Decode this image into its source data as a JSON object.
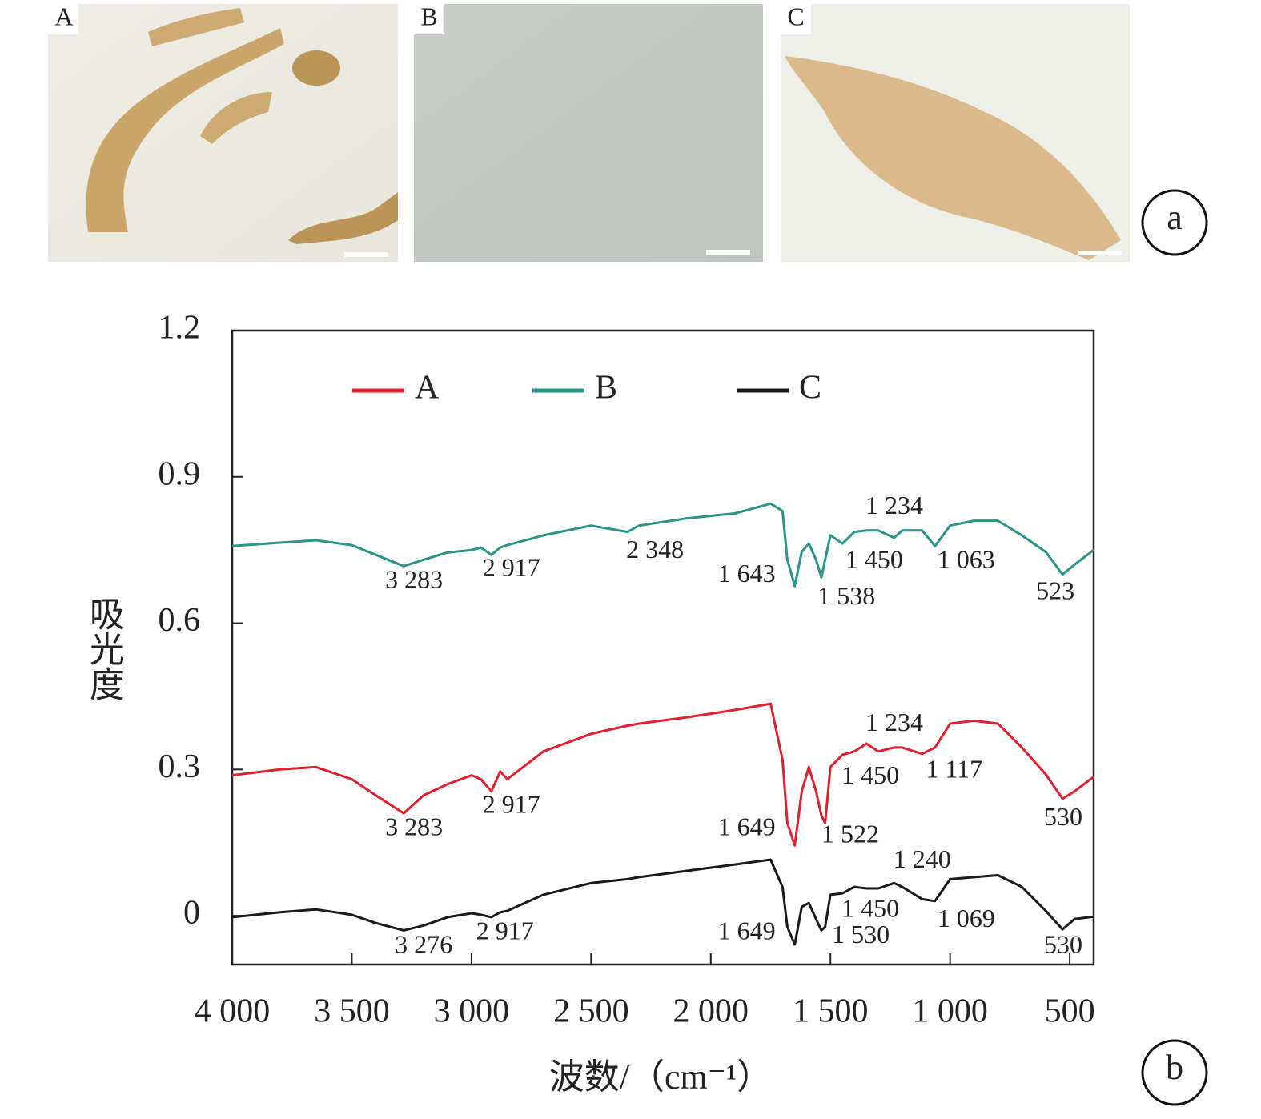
{
  "figure": {
    "micrograph_labels": [
      "A",
      "B",
      "C"
    ],
    "panel_a": "a",
    "panel_b": "b"
  },
  "chart_data": {
    "type": "line",
    "xlabel": "波数/（cm⁻¹）",
    "ylabel": "吸光度",
    "x": [
      4000,
      3800,
      3650,
      3500,
      3400,
      3283,
      3200,
      3100,
      3000,
      2960,
      2917,
      2880,
      2850,
      2700,
      2500,
      2348,
      2300,
      2100,
      1900,
      1750,
      1700,
      1680,
      1649,
      1620,
      1590,
      1560,
      1538,
      1522,
      1500,
      1450,
      1400,
      1350,
      1300,
      1234,
      1200,
      1117,
      1063,
      1000,
      900,
      800,
      700,
      600,
      530,
      480,
      400
    ],
    "series": [
      {
        "name": "A",
        "color": "#e0202f",
        "values": [
          0.288,
          0.3,
          0.305,
          0.28,
          0.247,
          0.21,
          0.247,
          0.27,
          0.288,
          0.28,
          0.255,
          0.296,
          0.28,
          0.337,
          0.373,
          0.39,
          0.394,
          0.407,
          0.422,
          0.435,
          0.32,
          0.19,
          0.144,
          0.255,
          0.305,
          0.255,
          0.206,
          0.19,
          0.305,
          0.33,
          0.337,
          0.353,
          0.337,
          0.345,
          0.345,
          0.332,
          0.345,
          0.394,
          0.4,
          0.394,
          0.345,
          0.29,
          0.24,
          0.255,
          0.285
        ]
      },
      {
        "name": "B",
        "color": "#2a9486",
        "values": [
          0.758,
          0.765,
          0.77,
          0.76,
          0.74,
          0.717,
          0.73,
          0.745,
          0.75,
          0.755,
          0.74,
          0.755,
          0.76,
          0.78,
          0.8,
          0.787,
          0.8,
          0.815,
          0.825,
          0.845,
          0.83,
          0.73,
          0.676,
          0.746,
          0.763,
          0.73,
          0.694,
          0.73,
          0.78,
          0.763,
          0.787,
          0.79,
          0.79,
          0.775,
          0.79,
          0.79,
          0.758,
          0.8,
          0.81,
          0.81,
          0.78,
          0.746,
          0.7,
          0.72,
          0.75
        ]
      },
      {
        "name": "C",
        "color": "#1a1a1a",
        "values": [
          -0.003,
          0.007,
          0.013,
          0.002,
          -0.015,
          -0.03,
          -0.02,
          -0.003,
          0.005,
          0.002,
          -0.003,
          0.007,
          0.01,
          0.043,
          0.067,
          0.075,
          0.079,
          0.092,
          0.105,
          0.115,
          0.059,
          -0.023,
          -0.059,
          0.018,
          0.026,
          -0.007,
          -0.03,
          -0.023,
          0.043,
          0.046,
          0.059,
          0.056,
          0.056,
          0.067,
          0.059,
          0.034,
          0.03,
          0.075,
          0.079,
          0.083,
          0.059,
          0.01,
          -0.028,
          -0.007,
          -0.002
        ]
      }
    ],
    "xlim": [
      4000,
      400
    ],
    "ylim": [
      -0.1,
      1.2
    ],
    "xticks": [
      {
        "value": 4000,
        "label": "4 000"
      },
      {
        "value": 3500,
        "label": "3 500"
      },
      {
        "value": 3000,
        "label": "3 000"
      },
      {
        "value": 2500,
        "label": "2 500"
      },
      {
        "value": 2000,
        "label": "2 000"
      },
      {
        "value": 1500,
        "label": "1 500"
      },
      {
        "value": 1000,
        "label": "1 000"
      },
      500
    ],
    "yticks": [
      0,
      0.3,
      0.6,
      0.9,
      1.2
    ],
    "legend": "top-left",
    "annotations": [
      {
        "text": "3 283",
        "x": 3240,
        "y": 0.684
      },
      {
        "text": "2 917",
        "x": 2833,
        "y": 0.709
      },
      {
        "text": "2 348",
        "x": 2233,
        "y": 0.746
      },
      {
        "text": "1 643",
        "x": 1850,
        "y": 0.697
      },
      {
        "text": "1 538",
        "x": 1433,
        "y": 0.651
      },
      {
        "text": "1 450",
        "x": 1317,
        "y": 0.725
      },
      {
        "text": "1 234",
        "x": 1233,
        "y": 0.836
      },
      {
        "text": "1 063",
        "x": 933,
        "y": 0.725
      },
      {
        "text": "523",
        "x": 560,
        "y": 0.661
      },
      {
        "text": "3 283",
        "x": 3240,
        "y": 0.177
      },
      {
        "text": "2 917",
        "x": 2833,
        "y": 0.223
      },
      {
        "text": "1 649",
        "x": 1850,
        "y": 0.177
      },
      {
        "text": "1 522",
        "x": 1417,
        "y": 0.162
      },
      {
        "text": "1 450",
        "x": 1333,
        "y": 0.283
      },
      {
        "text": "1 234",
        "x": 1233,
        "y": 0.391
      },
      {
        "text": "1 117",
        "x": 983,
        "y": 0.295
      },
      {
        "text": "530",
        "x": 527,
        "y": 0.198
      },
      {
        "text": "3 276",
        "x": 3200,
        "y": -0.064
      },
      {
        "text": "2 917",
        "x": 2860,
        "y": -0.036
      },
      {
        "text": "1 649",
        "x": 1850,
        "y": -0.036
      },
      {
        "text": "1 530",
        "x": 1373,
        "y": -0.044
      },
      {
        "text": "1 450",
        "x": 1333,
        "y": 0.01
      },
      {
        "text": "1 240",
        "x": 1117,
        "y": 0.111
      },
      {
        "text": "1 069",
        "x": 933,
        "y": -0.011
      },
      {
        "text": "530",
        "x": 527,
        "y": -0.064
      }
    ]
  }
}
